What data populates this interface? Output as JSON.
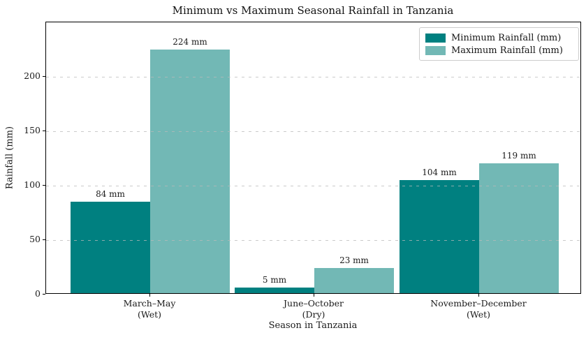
{
  "chart_data": {
    "type": "bar",
    "title": "Minimum vs Maximum Seasonal Rainfall in Tanzania",
    "xlabel": "Season in Tanzania",
    "ylabel": "Rainfall (mm)",
    "categories": [
      {
        "label": "March–May",
        "sublabel": "(Wet)"
      },
      {
        "label": "June–October",
        "sublabel": "(Dry)"
      },
      {
        "label": "November–December",
        "sublabel": "(Wet)"
      }
    ],
    "series": [
      {
        "name": "Minimum Rainfall (mm)",
        "color": "#008080",
        "values": [
          84,
          5,
          104
        ],
        "value_labels": [
          "84 mm",
          "5 mm",
          "104 mm"
        ]
      },
      {
        "name": "Maximum Rainfall (mm)",
        "color": "#72b8b5",
        "values": [
          224,
          23,
          119
        ],
        "value_labels": [
          "224 mm",
          "23 mm",
          "119 mm"
        ]
      }
    ],
    "yticks": [
      0,
      50,
      100,
      150,
      200
    ],
    "ylim": [
      0,
      250
    ],
    "grid": "horizontal-dashed",
    "legend_position": "upper-right"
  }
}
